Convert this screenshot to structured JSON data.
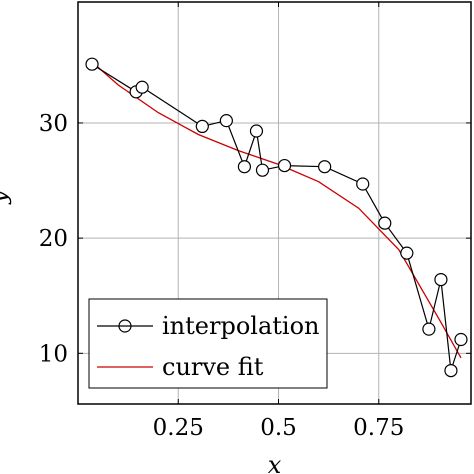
{
  "chart_data": {
    "type": "line",
    "xlabel": "x",
    "ylabel": "y",
    "xlim": [
      0.0,
      0.98
    ],
    "ylim": [
      5.6,
      40.5
    ],
    "xticks": [
      0.25,
      0.5,
      0.75
    ],
    "xtick_labels": [
      "0.25",
      "0.5",
      "0.75"
    ],
    "yticks": [
      10,
      20,
      30
    ],
    "ytick_labels": [
      "10",
      "20",
      "30"
    ],
    "grid": true,
    "legend_position": "bottom-left",
    "series": [
      {
        "name": "interpolation",
        "color": "#000000",
        "marker": "circle",
        "x": [
          0.035,
          0.145,
          0.16,
          0.31,
          0.37,
          0.415,
          0.445,
          0.46,
          0.515,
          0.615,
          0.71,
          0.765,
          0.82,
          0.875,
          0.905,
          0.93,
          0.955
        ],
        "y": [
          35.1,
          32.7,
          33.1,
          29.7,
          30.2,
          26.2,
          29.3,
          25.9,
          26.3,
          26.2,
          24.7,
          21.3,
          18.7,
          12.1,
          16.4,
          8.5,
          11.2
        ]
      },
      {
        "name": "curve fit",
        "color": "#cc0000",
        "x": [
          0.035,
          0.1,
          0.2,
          0.3,
          0.4,
          0.5,
          0.6,
          0.7,
          0.8,
          0.9,
          0.955
        ],
        "y": [
          35.3,
          33.3,
          30.9,
          29.0,
          27.6,
          26.4,
          24.9,
          22.6,
          19.0,
          13.0,
          9.6
        ]
      }
    ]
  }
}
